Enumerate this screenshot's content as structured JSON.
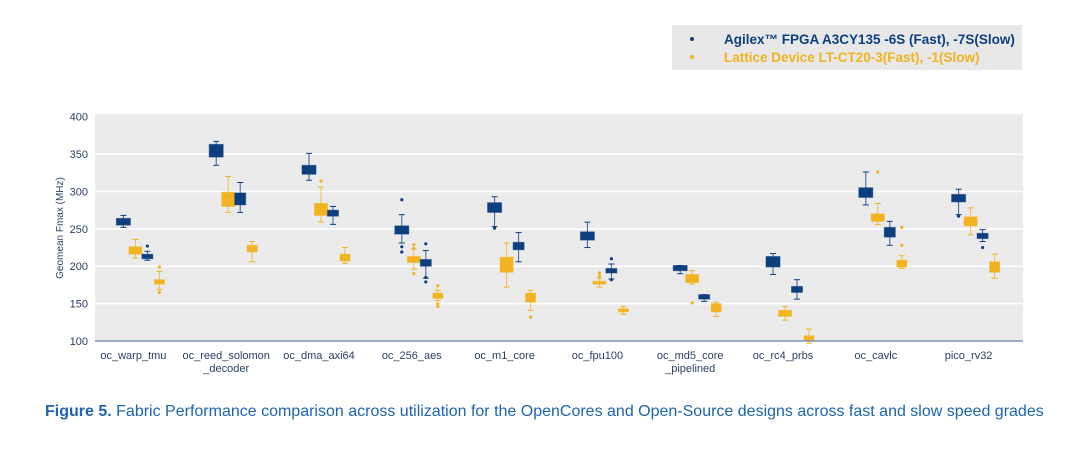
{
  "chart_data": {
    "type": "boxplot",
    "ylabel": "Geomean Fmax (MHz)",
    "ylim": [
      100,
      400
    ],
    "yticks": [
      100,
      150,
      200,
      250,
      300,
      350,
      400
    ],
    "grid": true,
    "legend_position": "top-right",
    "series": [
      {
        "name": "Agilex™ FPGA A3CY135 -6S (Fast), -7S(Slow)",
        "color": "#0d3f7f"
      },
      {
        "name": "Lattice Device LT-CT20-3(Fast), -1(Slow)",
        "color": "#f2b320"
      }
    ],
    "categories": [
      {
        "label": [
          "oc_warp_tmu"
        ],
        "boxes": [
          {
            "series": 0,
            "whislo": 252,
            "q1": 255,
            "med": 260,
            "q3": 264,
            "whishi": 268,
            "fliers": []
          },
          {
            "series": 1,
            "whislo": 211,
            "q1": 216,
            "med": 221,
            "q3": 226,
            "whishi": 236,
            "fliers": []
          },
          {
            "series": 0,
            "whislo": 208,
            "q1": 210,
            "med": 213,
            "q3": 216,
            "whishi": 220,
            "fliers": [
              227
            ]
          },
          {
            "series": 1,
            "whislo": 169,
            "q1": 176,
            "med": 179,
            "q3": 182,
            "whishi": 193,
            "fliers": [
              199,
              165
            ]
          }
        ]
      },
      {
        "label": [
          "oc_reed_solomon",
          "_decoder"
        ],
        "boxes": [
          {
            "series": 0,
            "whislo": 335,
            "q1": 346,
            "med": 355,
            "q3": 363,
            "whishi": 367,
            "fliers": []
          },
          {
            "series": 1,
            "whislo": 272,
            "q1": 280,
            "med": 289,
            "q3": 299,
            "whishi": 320,
            "fliers": []
          },
          {
            "series": 0,
            "whislo": 272,
            "q1": 282,
            "med": 291,
            "q3": 298,
            "whishi": 312,
            "fliers": []
          },
          {
            "series": 1,
            "whislo": 206,
            "q1": 219,
            "med": 223,
            "q3": 228,
            "whishi": 233,
            "fliers": []
          }
        ]
      },
      {
        "label": [
          "oc_dma_axi64"
        ],
        "boxes": [
          {
            "series": 0,
            "whislo": 315,
            "q1": 323,
            "med": 329,
            "q3": 335,
            "whishi": 351,
            "fliers": []
          },
          {
            "series": 1,
            "whislo": 259,
            "q1": 268,
            "med": 276,
            "q3": 284,
            "whishi": 306,
            "fliers": [
              314
            ]
          },
          {
            "series": 0,
            "whislo": 256,
            "q1": 267,
            "med": 271,
            "q3": 275,
            "whishi": 280,
            "fliers": []
          },
          {
            "series": 1,
            "whislo": 204,
            "q1": 207,
            "med": 212,
            "q3": 216,
            "whishi": 225,
            "fliers": []
          }
        ]
      },
      {
        "label": [
          "oc_256_aes"
        ],
        "boxes": [
          {
            "series": 0,
            "whislo": 231,
            "q1": 243,
            "med": 248,
            "q3": 254,
            "whishi": 269,
            "fliers": [
              289,
              226,
              219
            ]
          },
          {
            "series": 1,
            "whislo": 196,
            "q1": 205,
            "med": 209,
            "q3": 213,
            "whishi": 223,
            "fliers": [
              229,
              224,
              190
            ]
          },
          {
            "series": 0,
            "whislo": 184,
            "q1": 200,
            "med": 205,
            "q3": 209,
            "whishi": 221,
            "fliers": [
              230,
              185,
              179
            ]
          },
          {
            "series": 1,
            "whislo": 154,
            "q1": 157,
            "med": 161,
            "q3": 164,
            "whishi": 168,
            "fliers": [
              174,
              150,
              146
            ]
          }
        ]
      },
      {
        "label": [
          "oc_m1_core"
        ],
        "boxes": [
          {
            "series": 0,
            "whislo": 253,
            "q1": 272,
            "med": 279,
            "q3": 285,
            "whishi": 293,
            "fliers": [
              251
            ]
          },
          {
            "series": 1,
            "whislo": 172,
            "q1": 192,
            "med": 202,
            "q3": 212,
            "whishi": 231,
            "fliers": []
          },
          {
            "series": 0,
            "whislo": 206,
            "q1": 222,
            "med": 227,
            "q3": 232,
            "whishi": 245,
            "fliers": []
          },
          {
            "series": 1,
            "whislo": 141,
            "q1": 152,
            "med": 158,
            "q3": 164,
            "whishi": 168,
            "fliers": [
              132
            ]
          }
        ]
      },
      {
        "label": [
          "oc_fpu100"
        ],
        "boxes": [
          {
            "series": 0,
            "whislo": 225,
            "q1": 235,
            "med": 240,
            "q3": 246,
            "whishi": 259,
            "fliers": []
          },
          {
            "series": 1,
            "whislo": 172,
            "q1": 176,
            "med": 178,
            "q3": 180,
            "whishi": 184,
            "fliers": [
              191,
              187
            ]
          },
          {
            "series": 0,
            "whislo": 183,
            "q1": 191,
            "med": 194,
            "q3": 197,
            "whishi": 203,
            "fliers": [
              210,
              182
            ]
          },
          {
            "series": 1,
            "whislo": 136,
            "q1": 139,
            "med": 141,
            "q3": 143,
            "whishi": 146,
            "fliers": []
          }
        ]
      },
      {
        "label": [
          "oc_md5_core",
          "_pipelined"
        ],
        "boxes": [
          {
            "series": 0,
            "whislo": 190,
            "q1": 194,
            "med": 198,
            "q3": 201,
            "whishi": 201,
            "fliers": []
          },
          {
            "series": 1,
            "whislo": 176,
            "q1": 178,
            "med": 183,
            "q3": 189,
            "whishi": 194,
            "fliers": [
              151
            ]
          },
          {
            "series": 0,
            "whislo": 153,
            "q1": 156,
            "med": 159,
            "q3": 162,
            "whishi": 162,
            "fliers": []
          },
          {
            "series": 1,
            "whislo": 133,
            "q1": 139,
            "med": 144,
            "q3": 150,
            "whishi": 152,
            "fliers": []
          }
        ]
      },
      {
        "label": [
          "oc_rc4_prbs"
        ],
        "boxes": [
          {
            "series": 0,
            "whislo": 189,
            "q1": 199,
            "med": 206,
            "q3": 213,
            "whishi": 217,
            "fliers": []
          },
          {
            "series": 1,
            "whislo": 128,
            "q1": 133,
            "med": 137,
            "q3": 141,
            "whishi": 146,
            "fliers": []
          },
          {
            "series": 0,
            "whislo": 156,
            "q1": 165,
            "med": 169,
            "q3": 173,
            "whishi": 182,
            "fliers": []
          },
          {
            "series": 1,
            "whislo": 97,
            "q1": 100,
            "med": 103,
            "q3": 107,
            "whishi": 116,
            "fliers": []
          }
        ]
      },
      {
        "label": [
          "oc_cavlc"
        ],
        "boxes": [
          {
            "series": 0,
            "whislo": 282,
            "q1": 292,
            "med": 298,
            "q3": 305,
            "whishi": 326,
            "fliers": []
          },
          {
            "series": 1,
            "whislo": 256,
            "q1": 260,
            "med": 265,
            "q3": 270,
            "whishi": 284,
            "fliers": [
              326
            ]
          },
          {
            "series": 0,
            "whislo": 228,
            "q1": 239,
            "med": 245,
            "q3": 252,
            "whishi": 260,
            "fliers": []
          },
          {
            "series": 1,
            "whislo": 197,
            "q1": 199,
            "med": 204,
            "q3": 208,
            "whishi": 214,
            "fliers": [
              252,
              228
            ]
          }
        ]
      },
      {
        "label": [
          "pico_rv32"
        ],
        "boxes": [
          {
            "series": 0,
            "whislo": 269,
            "q1": 286,
            "med": 291,
            "q3": 296,
            "whishi": 303,
            "fliers": [
              267
            ]
          },
          {
            "series": 1,
            "whislo": 242,
            "q1": 254,
            "med": 260,
            "q3": 266,
            "whishi": 278,
            "fliers": []
          },
          {
            "series": 0,
            "whislo": 233,
            "q1": 237,
            "med": 241,
            "q3": 244,
            "whishi": 249,
            "fliers": [
              225
            ]
          },
          {
            "series": 1,
            "whislo": 184,
            "q1": 192,
            "med": 199,
            "q3": 206,
            "whishi": 216,
            "fliers": []
          }
        ]
      }
    ]
  },
  "legend": {
    "items": [
      {
        "label": "Agilex™ FPGA A3CY135 -6S (Fast), -7S(Slow)",
        "color": "#0d3f7f"
      },
      {
        "label": "Lattice Device LT-CT20-3(Fast), -1(Slow)",
        "color": "#f2b320"
      }
    ]
  },
  "caption": {
    "figure_label": "Figure 5.",
    "text": "Fabric Performance comparison across utilization for the OpenCores and Open-Source designs across fast and slow speed grades"
  }
}
